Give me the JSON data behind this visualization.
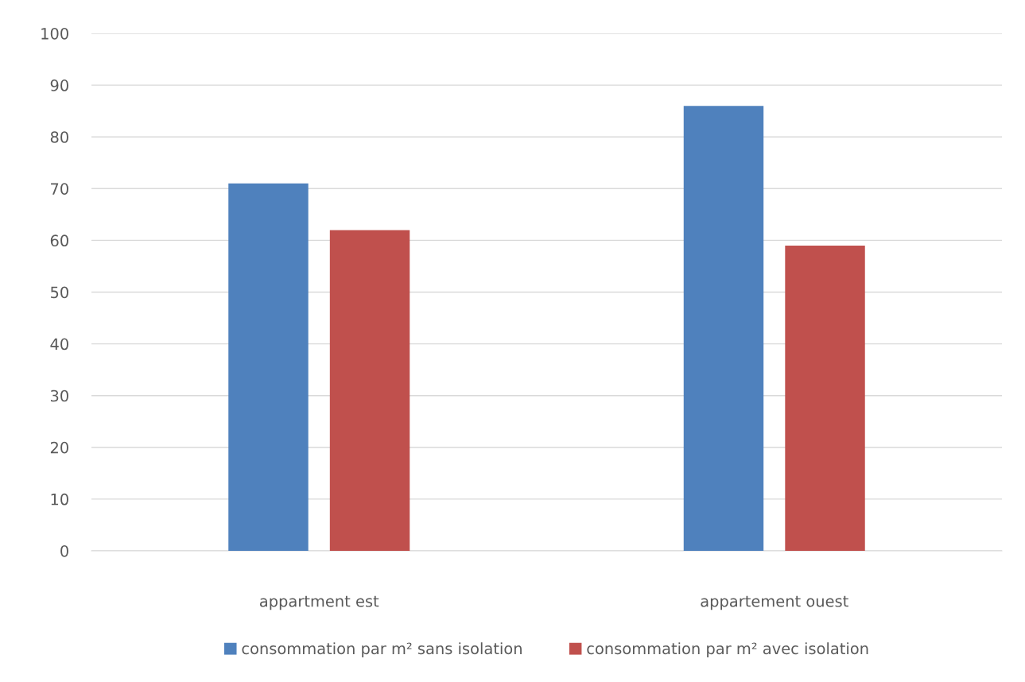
{
  "chart_data": {
    "type": "bar",
    "categories": [
      "appartment est",
      "appartement ouest"
    ],
    "series": [
      {
        "name": "consommation par m² sans isolation",
        "color": "#4f81bd",
        "values": [
          71,
          86
        ]
      },
      {
        "name": "consommation par m² avec isolation",
        "color": "#c0504d",
        "values": [
          62,
          59
        ]
      }
    ],
    "ylim": [
      0,
      100
    ],
    "yticks": [
      0,
      10,
      20,
      30,
      40,
      50,
      60,
      70,
      80,
      90,
      100
    ],
    "grid": "y",
    "legend": "bottom"
  }
}
